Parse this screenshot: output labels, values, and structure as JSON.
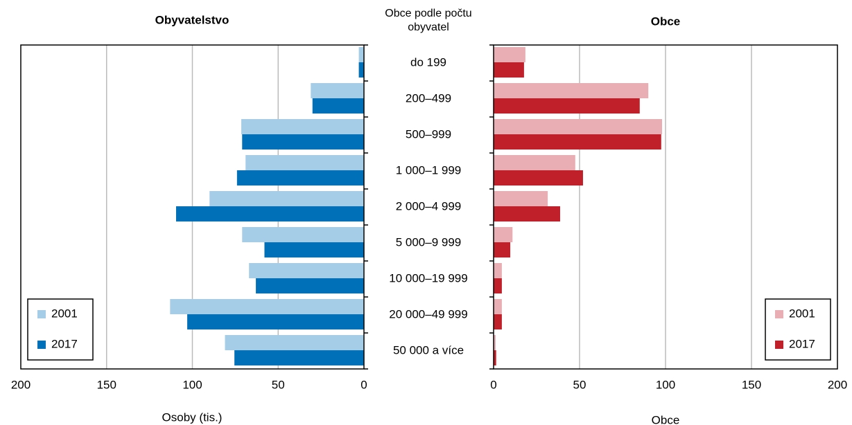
{
  "chart_data": [
    {
      "type": "bar",
      "orientation": "horizontal",
      "title": "Obyvatelstvo",
      "category_title": "Obce podle počtu obyvatel",
      "xlabel": "Osoby (tis.)",
      "categories": [
        "do 199",
        "200–499",
        "500–999",
        "1 000–1 999",
        "2 000–4 999",
        "5 000–9 999",
        "10 000–19 999",
        "20 000–49 999",
        "50 000 a více"
      ],
      "series": [
        {
          "name": "2001",
          "color": "#a6cde8",
          "values": [
            3,
            31,
            71.5,
            69,
            90,
            71,
            67,
            113,
            81
          ]
        },
        {
          "name": "2017",
          "color": "#0070b8",
          "values": [
            3,
            30,
            71,
            74,
            109.5,
            58,
            63,
            103,
            75.5
          ]
        }
      ],
      "xlim": [
        200,
        0
      ],
      "xticks": [
        200,
        150,
        100,
        50,
        0
      ],
      "grid": true,
      "legend": "lower left"
    },
    {
      "type": "bar",
      "orientation": "horizontal",
      "title": "Obce",
      "xlabel": "Obce",
      "series": [
        {
          "name": "2001",
          "color": "#e8aeb3",
          "values": [
            18.5,
            90,
            98,
            47.5,
            31.5,
            11,
            4.8,
            4.8,
            1.2
          ]
        },
        {
          "name": "2017",
          "color": "#c0202a",
          "values": [
            17.7,
            85,
            97.5,
            52,
            38.7,
            9.7,
            4.8,
            4.8,
            1.5
          ]
        }
      ],
      "xlim": [
        0,
        200
      ],
      "xticks": [
        0,
        50,
        100,
        150,
        200
      ],
      "grid": true,
      "legend": "lower right"
    }
  ]
}
